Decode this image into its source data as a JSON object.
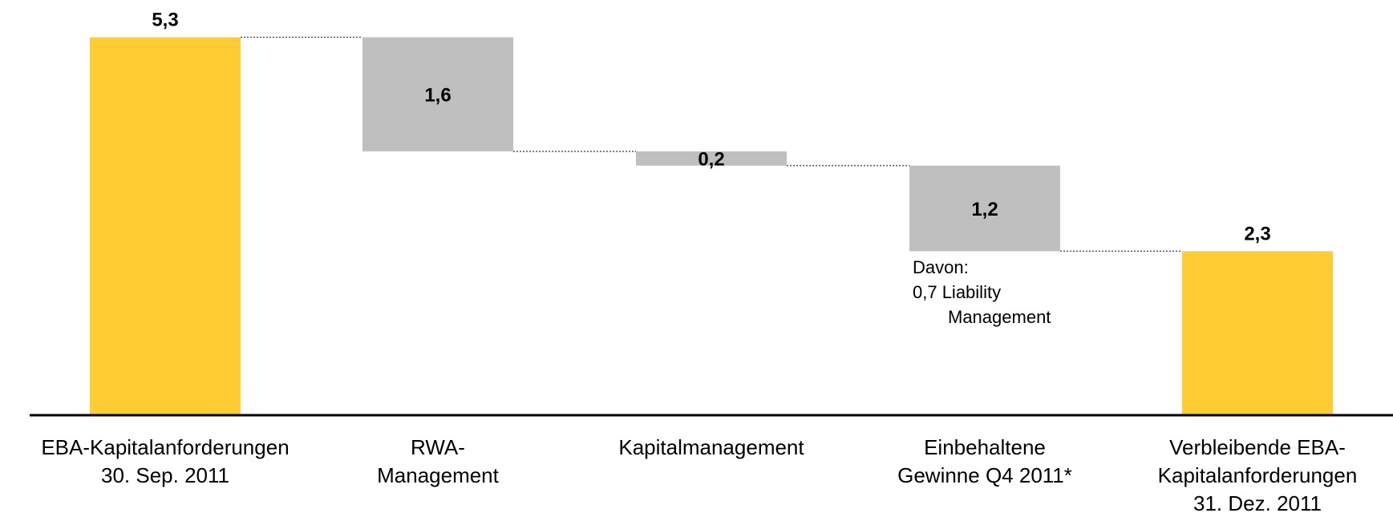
{
  "chart_data": {
    "type": "waterfall",
    "categories": [
      "EBA-Kapitalanforderungen\n30. Sep. 2011",
      "RWA-\nManagement",
      "Kapitalmanagement",
      "Einbehaltene\nGewinne Q4 2011*",
      "Verbleibende EBA-\nKapitalanforderungen\n31. Dez. 2011"
    ],
    "values": [
      5.3,
      -1.6,
      -0.2,
      -1.2,
      2.3
    ],
    "value_labels": [
      "5,3",
      "1,6",
      "0,2",
      "1,2",
      "2,3"
    ],
    "totals": [
      true,
      false,
      false,
      false,
      true
    ],
    "total_color": "#FFCC33",
    "change_color": "#BFBFBF",
    "ylim": [
      0,
      5.3
    ],
    "annotation": [
      "Davon:",
      "0,7 Liability",
      "Management"
    ]
  }
}
